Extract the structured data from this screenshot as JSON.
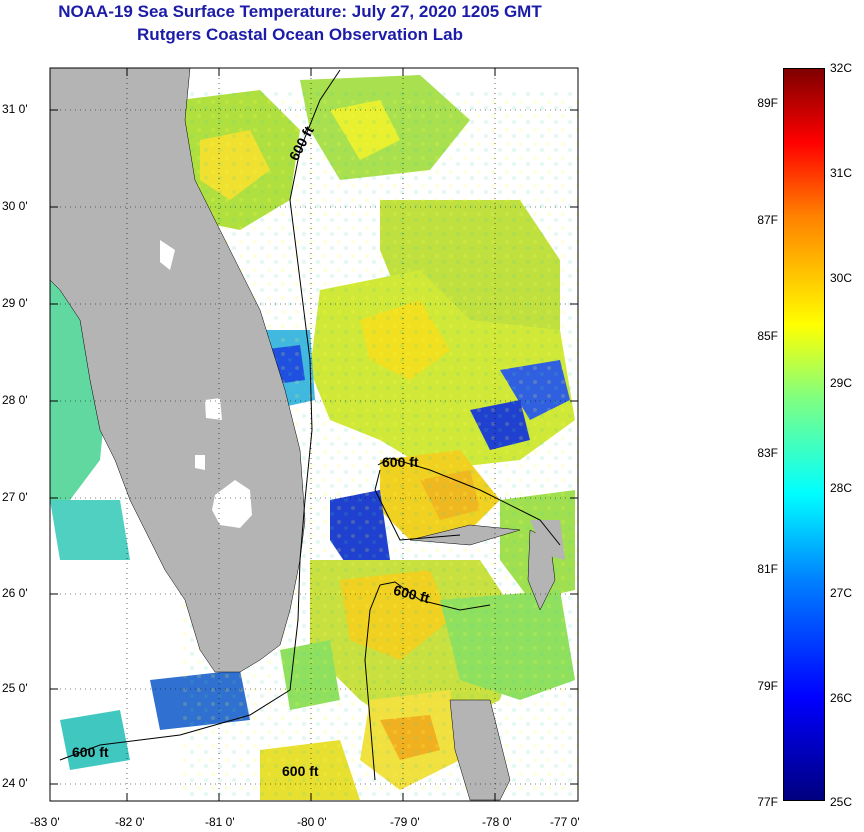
{
  "title": {
    "line1": "NOAA-19 Sea Surface Temperature:  July 27, 2020 1205 GMT",
    "line2": "Rutgers Coastal Ocean Observation Lab"
  },
  "map": {
    "lat_labels": [
      "31 0'",
      "30 0'",
      "29 0'",
      "28 0'",
      "27 0'",
      "26 0'",
      "25 0'",
      "24 0'"
    ],
    "lon_labels": [
      "-83 0'",
      "-82 0'",
      "-81 0'",
      "-80 0'",
      "-79 0'",
      "-78 0'",
      "-77 0'"
    ],
    "contour_labels": [
      "600 ft",
      "600 ft",
      "600 ft",
      "600 ft",
      "600 ft"
    ],
    "colors": {
      "land": "#b4b4b4",
      "no_data": "#ffffff",
      "sea_warm": "#f0d020",
      "sea_mid": "#a0e040",
      "sea_cool": "#40c8c0",
      "sea_cold": "#1020c0"
    }
  },
  "colorbar": {
    "f_labels": [
      "89F",
      "87F",
      "85F",
      "83F",
      "81F",
      "79F",
      "77F"
    ],
    "c_labels": [
      "32C",
      "31C",
      "30C",
      "29C",
      "28C",
      "27C",
      "26C",
      "25C"
    ],
    "min_c": 25,
    "max_c": 32
  }
}
